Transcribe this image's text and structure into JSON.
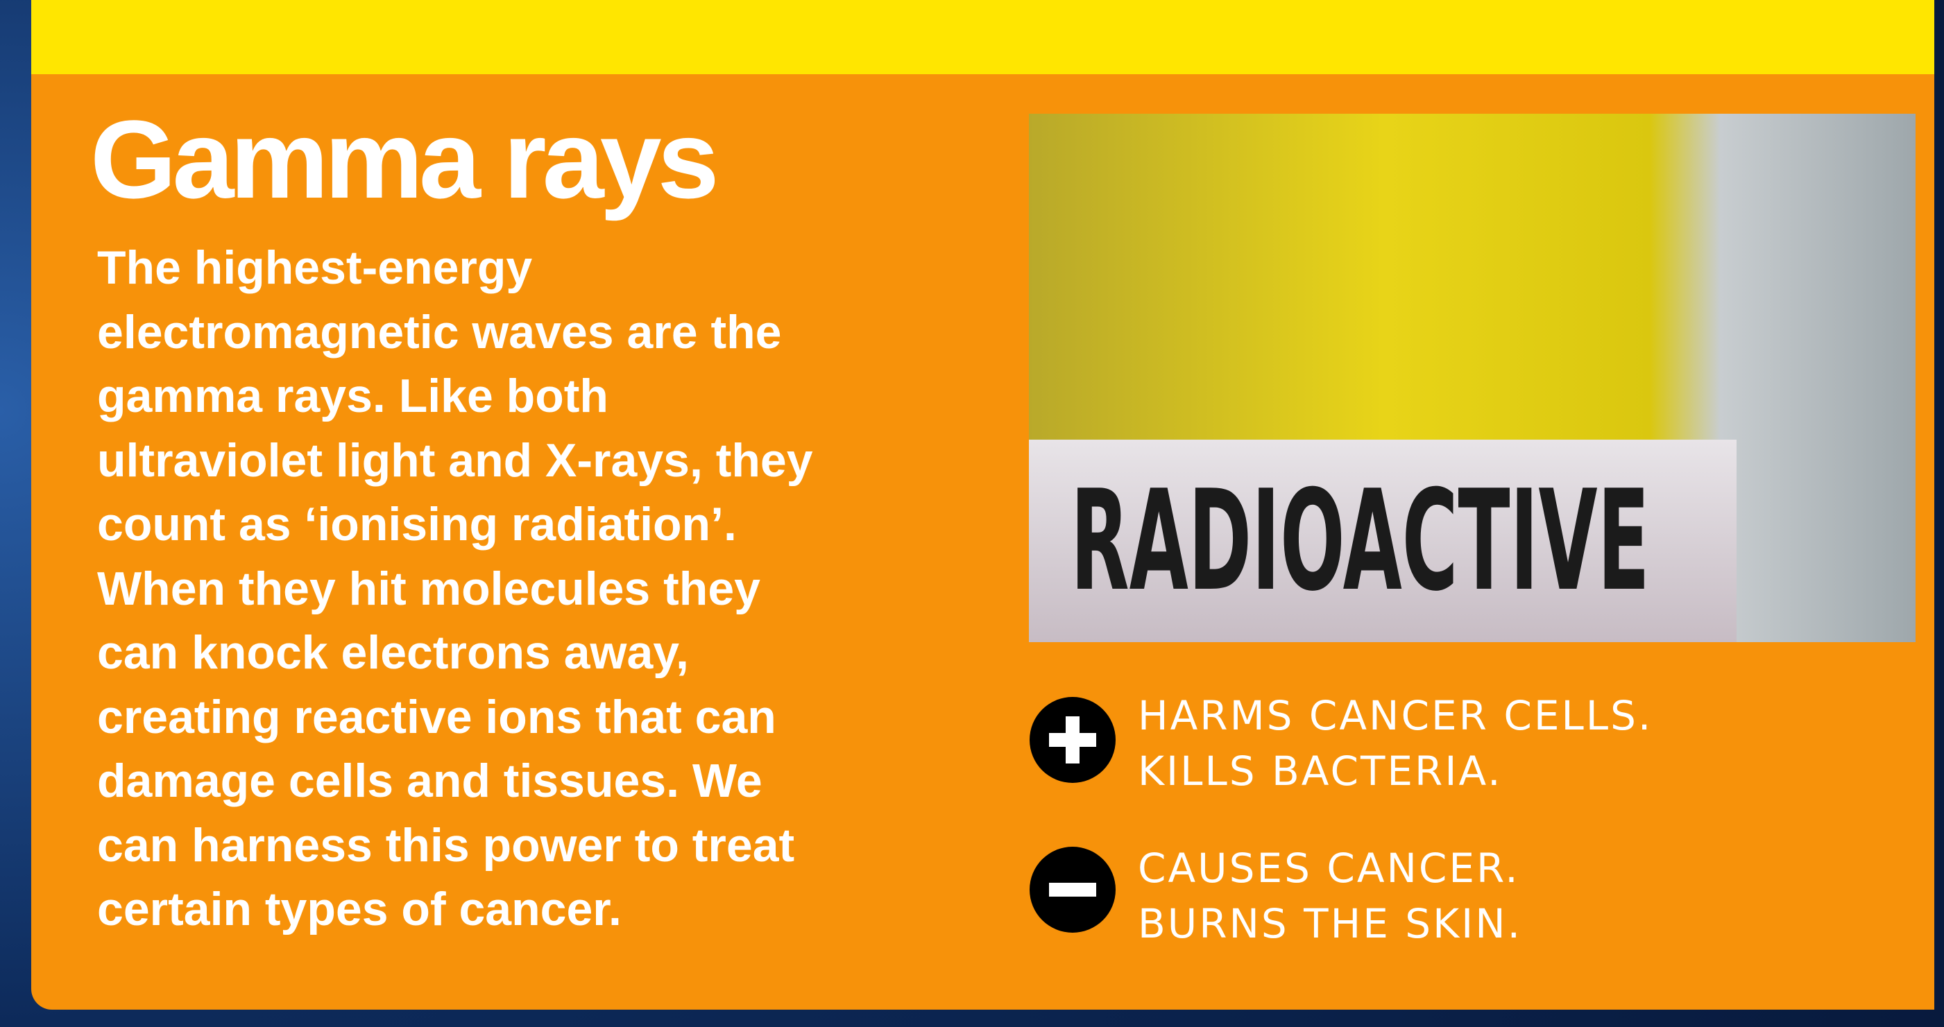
{
  "header": {
    "title": "Gamma rays"
  },
  "body": {
    "lines": [
      "The highest-energy",
      "electromagnetic waves are the",
      "gamma rays. Like both",
      "ultraviolet light and X-rays, they",
      "count as ‘ionising radiation’.",
      "When they hit molecules they",
      "can knock electrons away,",
      "creating reactive ions that can",
      "damage cells and tissues. We",
      "can harness this power to treat",
      "certain types of cancer."
    ]
  },
  "image": {
    "label": "RADIOACTIVE"
  },
  "pros": {
    "lines": [
      "HARMS CANCER CELLS.",
      "KILLS BACTERIA."
    ]
  },
  "cons": {
    "lines": [
      "CAUSES CANCER.",
      "BURNS THE SKIN."
    ]
  }
}
